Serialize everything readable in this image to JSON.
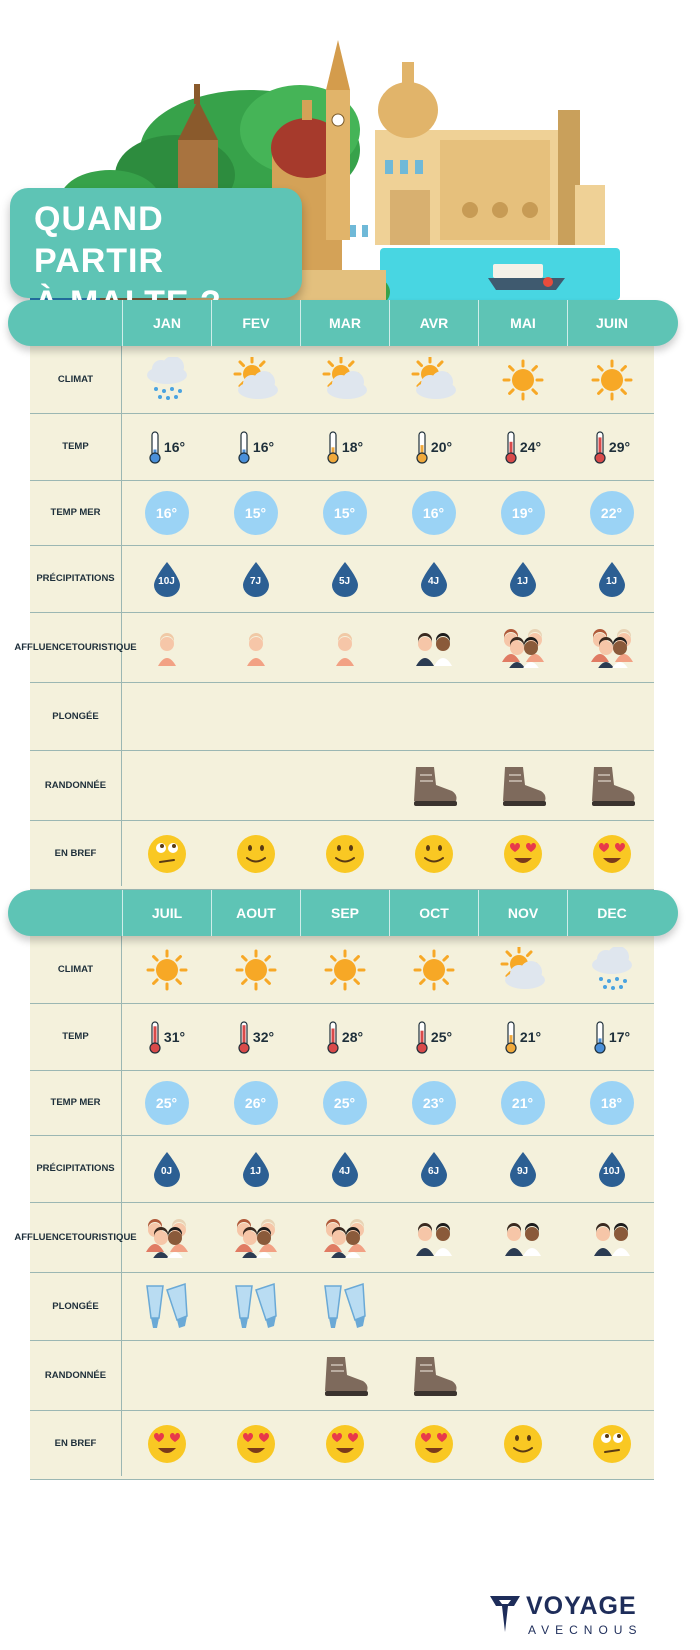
{
  "header": {
    "title_line1": "QUAND PARTIR",
    "title_line2": "À MALTE ?"
  },
  "row_labels": {
    "climat": "CLIMAT",
    "temp": "TEMP",
    "temp_mer": "TEMP MER",
    "precip": "PRÉCIPITATIONS",
    "affluence_1": "AFFLUENCE",
    "affluence_2": "TOURISTIQUE",
    "plongee": "PLONGÉE",
    "rando": "RANDONNÉE",
    "bref": "EN BREF"
  },
  "tables": [
    {
      "months": [
        {
          "name": "JAN",
          "climate": "rain-cloud-icon",
          "temp": "16°",
          "thermo_level": 0.25,
          "sea": "16°",
          "rain": "10J",
          "crowd": "single-tourist-icon",
          "diving": false,
          "hiking": false,
          "mood": "thinking-face-icon"
        },
        {
          "name": "FEV",
          "climate": "sun-cloud-icon",
          "temp": "16°",
          "thermo_level": 0.25,
          "sea": "15°",
          "rain": "7J",
          "crowd": "single-tourist-icon",
          "diving": false,
          "hiking": false,
          "mood": "smiley-face-icon"
        },
        {
          "name": "MAR",
          "climate": "sun-cloud-icon",
          "temp": "18°",
          "thermo_level": 0.35,
          "sea": "15°",
          "rain": "5J",
          "crowd": "single-tourist-icon",
          "diving": false,
          "hiking": false,
          "mood": "smiley-face-icon"
        },
        {
          "name": "AVR",
          "climate": "sun-cloud-icon",
          "temp": "20°",
          "thermo_level": 0.45,
          "sea": "16°",
          "rain": "4J",
          "crowd": "tourist-pair-icon",
          "diving": false,
          "hiking": true,
          "mood": "smiley-face-icon"
        },
        {
          "name": "MAI",
          "climate": "sun-icon",
          "temp": "24°",
          "thermo_level": 0.6,
          "sea": "19°",
          "rain": "1J",
          "crowd": "tourist-group-icon",
          "diving": false,
          "hiking": true,
          "mood": "heart-eyes-face-icon"
        },
        {
          "name": "JUIN",
          "climate": "sun-icon",
          "temp": "29°",
          "thermo_level": 0.8,
          "sea": "22°",
          "rain": "1J",
          "crowd": "tourist-group-icon",
          "diving": false,
          "hiking": true,
          "mood": "heart-eyes-face-icon"
        }
      ]
    },
    {
      "months": [
        {
          "name": "JUIL",
          "climate": "sun-icon",
          "temp": "31°",
          "thermo_level": 0.85,
          "sea": "25°",
          "rain": "0J",
          "crowd": "tourist-group-icon",
          "diving": true,
          "hiking": false,
          "mood": "heart-eyes-face-icon"
        },
        {
          "name": "AOUT",
          "climate": "sun-icon",
          "temp": "32°",
          "thermo_level": 0.9,
          "sea": "26°",
          "rain": "1J",
          "crowd": "tourist-group-icon",
          "diving": true,
          "hiking": false,
          "mood": "heart-eyes-face-icon"
        },
        {
          "name": "SEP",
          "climate": "sun-icon",
          "temp": "28°",
          "thermo_level": 0.75,
          "sea": "25°",
          "rain": "4J",
          "crowd": "tourist-group-icon",
          "diving": true,
          "hiking": true,
          "mood": "heart-eyes-face-icon"
        },
        {
          "name": "OCT",
          "climate": "sun-icon",
          "temp": "25°",
          "thermo_level": 0.65,
          "sea": "23°",
          "rain": "6J",
          "crowd": "tourist-pair-icon",
          "diving": false,
          "hiking": true,
          "mood": "heart-eyes-face-icon"
        },
        {
          "name": "NOV",
          "climate": "sun-cloud-icon",
          "temp": "21°",
          "thermo_level": 0.45,
          "sea": "21°",
          "rain": "9J",
          "crowd": "tourist-pair-icon",
          "diving": false,
          "hiking": false,
          "mood": "smiley-face-icon"
        },
        {
          "name": "DEC",
          "climate": "rain-cloud-icon",
          "temp": "17°",
          "thermo_level": 0.3,
          "sea": "18°",
          "rain": "10J",
          "crowd": "tourist-pair-icon",
          "diving": false,
          "hiking": false,
          "mood": "thinking-face-icon"
        }
      ]
    }
  ],
  "logo": {
    "word": "VOYAGE",
    "sub": "AVECNOUS"
  },
  "colors": {
    "teal": "#5ec4b5",
    "panel": "#f4f1dc",
    "drop": "#2c5f93",
    "sea_circle": "#9bd3f5",
    "sun": "#f7a826",
    "cloud": "#dfe6ee",
    "text": "#1e2f3a",
    "logo": "#1e2d5a"
  }
}
